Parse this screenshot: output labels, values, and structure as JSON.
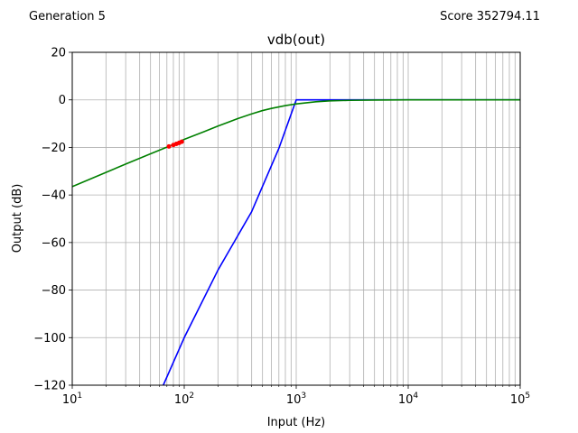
{
  "header": {
    "generation_label": "Generation 5",
    "score_label": "Score 352794.11"
  },
  "chart_data": {
    "type": "line",
    "title": "vdb(out)",
    "xlabel": "Input (Hz)",
    "ylabel": "Output (dB)",
    "xscale": "log",
    "xlim": [
      10,
      100000
    ],
    "ylim": [
      -120,
      20
    ],
    "grid": true,
    "x_tick_labels": [
      {
        "base": "10",
        "exp": "1",
        "value": 10
      },
      {
        "base": "10",
        "exp": "2",
        "value": 100
      },
      {
        "base": "10",
        "exp": "3",
        "value": 1000
      },
      {
        "base": "10",
        "exp": "4",
        "value": 10000
      },
      {
        "base": "10",
        "exp": "5",
        "value": 100000
      }
    ],
    "y_ticks": [
      20,
      0,
      -20,
      -40,
      -60,
      -80,
      -100,
      -120
    ],
    "y_tick_labels": [
      "20",
      "0",
      "−20",
      "−40",
      "−60",
      "−80",
      "−100",
      "−120"
    ],
    "series": [
      {
        "color": "#0000ff",
        "x": [
          65,
          100,
          200,
          400,
          700,
          1000,
          1050,
          10000,
          100000
        ],
        "y": [
          -120,
          -100,
          -71.6,
          -47,
          -20.4,
          0,
          0,
          0,
          0
        ]
      },
      {
        "color": "#008000",
        "x": [
          10,
          20,
          30,
          50,
          70,
          100,
          150,
          200,
          300,
          400,
          500,
          600,
          800,
          1000,
          1500,
          2000,
          3000,
          5000,
          10000,
          100000
        ],
        "y": [
          -36.5,
          -30.5,
          -27,
          -22.7,
          -19.9,
          -16.6,
          -13.4,
          -11,
          -7.9,
          -5.9,
          -4.5,
          -3.6,
          -2.4,
          -1.7,
          -0.8,
          -0.4,
          -0.2,
          -0.1,
          0,
          0
        ]
      },
      {
        "color": "#ff0000",
        "marker": "dot",
        "x": [
          73,
          80,
          85,
          90,
          95
        ],
        "y": [
          -19.6,
          -19,
          -18.5,
          -18.1,
          -17.6
        ]
      }
    ]
  }
}
